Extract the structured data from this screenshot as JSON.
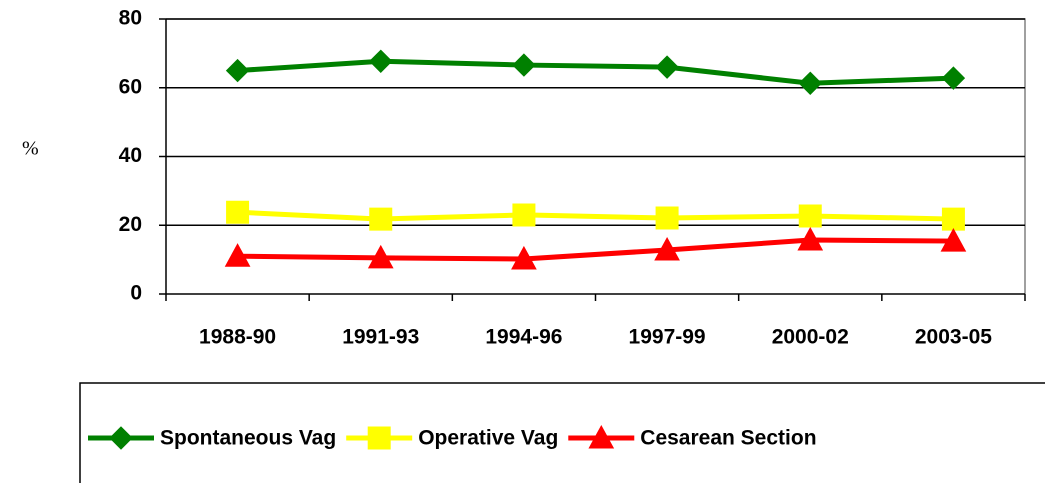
{
  "chart_data": {
    "type": "line",
    "y_label": "%",
    "categories": [
      "1988-90",
      "1991-93",
      "1994-96",
      "1997-99",
      "2000-02",
      "2003-05"
    ],
    "series": [
      {
        "name": "Spontaneous Vag",
        "color": "#008000",
        "marker": "diamond",
        "values": [
          65,
          67.7,
          66.6,
          66,
          61.3,
          62.8
        ]
      },
      {
        "name": "Operative Vag",
        "color": "#ffff00",
        "marker": "square",
        "values": [
          23.8,
          21.8,
          23,
          22.1,
          22.7,
          21.8
        ]
      },
      {
        "name": "Cesarean Section",
        "color": "#ff0000",
        "marker": "triangle",
        "values": [
          11,
          10.5,
          10.2,
          12.8,
          15.7,
          15.4
        ]
      }
    ],
    "ylim": [
      0,
      80
    ],
    "yticks": [
      0,
      20,
      40,
      60,
      80
    ],
    "grid": true,
    "legend": "bottom"
  }
}
